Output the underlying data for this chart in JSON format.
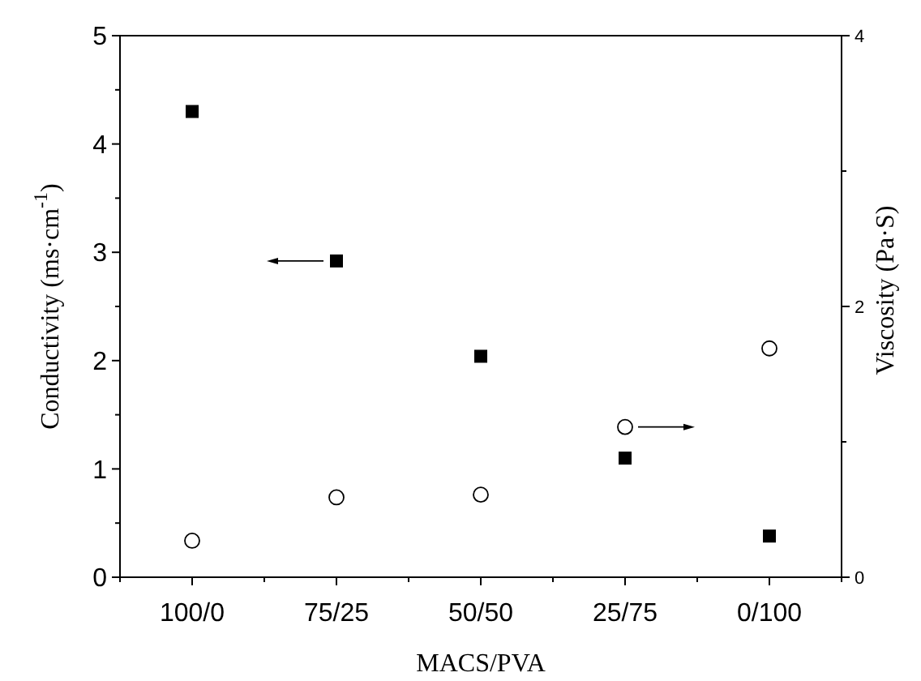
{
  "chart_data": {
    "type": "scatter",
    "xlabel": "MACS/PVA",
    "ylabel": "Conductivity (ms·cm$^{-1}$)",
    "y2label": "Viscosity (Pa·S)",
    "categories": [
      "100/0",
      "75/25",
      "50/50",
      "25/75",
      "0/100"
    ],
    "series": [
      {
        "color": "#000000",
        "marker": "square",
        "values": [
          4.3,
          2.92,
          2.04,
          1.1,
          0.38
        ]
      },
      {
        "color": "#000000",
        "marker": "circle",
        "axis": "y2",
        "values": [
          0.27,
          0.59,
          0.61,
          1.11,
          1.69
        ]
      }
    ],
    "ylim": [
      0,
      5
    ],
    "yticks": [
      0,
      {
        "value": 0.5,
        "label": null
      },
      1,
      {
        "value": 1.5,
        "label": null
      },
      2,
      {
        "value": 2.5,
        "label": null
      },
      3,
      {
        "value": 3.5,
        "label": null
      },
      4,
      {
        "value": 4.5,
        "label": null
      },
      5
    ],
    "y2lim": [
      0,
      4
    ],
    "y2ticks": [
      0,
      {
        "value": 1,
        "label": null
      },
      2,
      {
        "value": 3,
        "label": null
      },
      4
    ],
    "grid": false
  }
}
